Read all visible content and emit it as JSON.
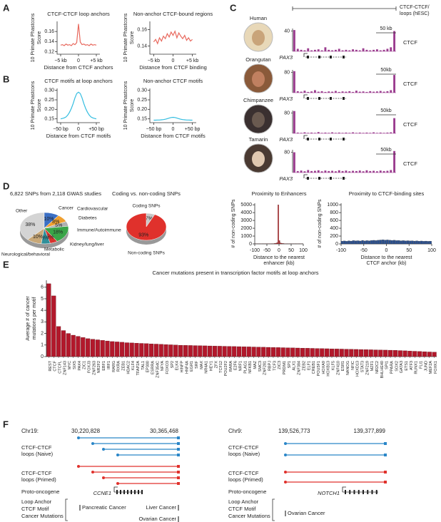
{
  "panel_labels": [
    "A",
    "B",
    "C",
    "D",
    "E",
    "F"
  ],
  "panel_a": [
    {
      "type": "line",
      "title": "CTCF-CTCF loop anchors",
      "ylabel": [
        "10 Primate Phastcons",
        "Score"
      ],
      "xlabel": "Distance from CTCF anchors",
      "color": "#e8695e",
      "x": [
        -5,
        -4.5,
        -4,
        -3.5,
        -3,
        -2.5,
        -2,
        -1.5,
        -1,
        -0.5,
        0,
        0.5,
        1,
        1.5,
        2,
        2.5,
        3,
        3.5,
        4,
        4.5,
        5
      ],
      "values": [
        0.133,
        0.134,
        0.132,
        0.135,
        0.133,
        0.134,
        0.132,
        0.136,
        0.134,
        0.138,
        0.175,
        0.139,
        0.134,
        0.135,
        0.133,
        0.134,
        0.132,
        0.135,
        0.133,
        0.134,
        0.133
      ],
      "xlim": [
        -6,
        6
      ],
      "xticks": [
        {
          "value": -5,
          "label": "−5 kb"
        },
        0,
        {
          "value": 5,
          "label": "+5 kb"
        }
      ],
      "ylim": [
        0.115,
        0.18
      ],
      "yticks": [
        0.12,
        0.14,
        0.16
      ]
    },
    {
      "type": "line",
      "title": "Non-anchor CTCF-bound regions",
      "ylabel": [
        "10 Primate Phastcons",
        "Score"
      ],
      "xlabel": "Distance from CTCF binding",
      "color": "#e8695e",
      "x": [
        -5,
        -4.5,
        -4,
        -3.5,
        -3,
        -2.5,
        -2,
        -1.5,
        -1,
        -0.5,
        0,
        0.5,
        1,
        1.5,
        2,
        2.5,
        3,
        3.5,
        4,
        4.5,
        5
      ],
      "values": [
        0.145,
        0.148,
        0.143,
        0.15,
        0.146,
        0.152,
        0.149,
        0.155,
        0.151,
        0.157,
        0.153,
        0.158,
        0.15,
        0.156,
        0.152,
        0.149,
        0.153,
        0.147,
        0.15,
        0.146,
        0.148
      ],
      "xlim": [
        -6,
        6
      ],
      "xticks": [
        {
          "value": -5,
          "label": "−5 kb"
        },
        0,
        {
          "value": 5,
          "label": "+5 kb"
        }
      ],
      "ylim": [
        0.13,
        0.17
      ],
      "yticks": [
        0.14,
        0.16
      ]
    }
  ],
  "panel_b": [
    {
      "type": "line",
      "title": "CTCF motifs at loop anchors",
      "ylabel": [
        "10 Primate Phastcons",
        "Score"
      ],
      "xlabel": "Distance from CTCF motifs",
      "color": "#33bde0",
      "x": [
        -50,
        -45,
        -40,
        -35,
        -30,
        -25,
        -20,
        -15,
        -10,
        -5,
        0,
        5,
        10,
        15,
        20,
        25,
        30,
        35,
        40,
        45,
        50
      ],
      "values": [
        0.15,
        0.152,
        0.155,
        0.16,
        0.17,
        0.185,
        0.205,
        0.23,
        0.26,
        0.283,
        0.29,
        0.283,
        0.26,
        0.23,
        0.205,
        0.185,
        0.17,
        0.16,
        0.155,
        0.152,
        0.15
      ],
      "xlim": [
        -60,
        60
      ],
      "xticks": [
        {
          "value": -50,
          "label": "−50 bp"
        },
        0,
        {
          "value": 50,
          "label": "+50 bp"
        }
      ],
      "ylim": [
        0.13,
        0.31
      ],
      "yticks": [
        0.15,
        {
          "value": 0.2,
          "label": "0.20"
        },
        0.25,
        {
          "value": 0.3,
          "label": "0.30"
        }
      ]
    },
    {
      "type": "line",
      "title": "Non-anchor CTCF motifs",
      "ylabel": [
        "10 Primate Phastcons",
        "Score"
      ],
      "xlabel": "Distance from CTCF motifs",
      "color": "#33bde0",
      "x": [
        -50,
        -45,
        -40,
        -35,
        -30,
        -25,
        -20,
        -15,
        -10,
        -5,
        0,
        5,
        10,
        15,
        20,
        25,
        30,
        35,
        40,
        45,
        50
      ],
      "values": [
        0.143,
        0.143,
        0.144,
        0.144,
        0.145,
        0.146,
        0.148,
        0.151,
        0.154,
        0.157,
        0.158,
        0.157,
        0.154,
        0.151,
        0.148,
        0.146,
        0.145,
        0.144,
        0.144,
        0.143,
        0.143
      ],
      "xlim": [
        -60,
        60
      ],
      "xticks": [
        {
          "value": -50,
          "label": "−50 bp"
        },
        0,
        {
          "value": 50,
          "label": "+50 bp"
        }
      ],
      "ylim": [
        0.13,
        0.31
      ],
      "yticks": [
        0.15,
        {
          "value": 0.2,
          "label": "0.20"
        },
        0.25,
        {
          "value": 0.3,
          "label": "0.30"
        }
      ]
    }
  ],
  "panel_c": {
    "loop_label": [
      "CTCF-CTCF/",
      "loops (hESC)"
    ],
    "track_label": "CTCF",
    "gene": "PAX3",
    "color": "#9b3d8f",
    "species": [
      {
        "name": "Human",
        "scale": "50 kb",
        "ylim": [
          0,
          45
        ],
        "yticks": [
          40
        ],
        "values": [
          42,
          5,
          3,
          2,
          6,
          2,
          3,
          4,
          2,
          8,
          3,
          2,
          3,
          5,
          2,
          3,
          2,
          4,
          3,
          2,
          6,
          3,
          2,
          3,
          4,
          2,
          3,
          5,
          8,
          40
        ]
      },
      {
        "name": "Orangutan",
        "scale": "50kb",
        "ylim": [
          0,
          90
        ],
        "yticks": [
          80
        ],
        "values": [
          85,
          6,
          4,
          8,
          3,
          5,
          10,
          4,
          6,
          3,
          5,
          4,
          7,
          3,
          5,
          4,
          6,
          3,
          8,
          4,
          5,
          3,
          6,
          4,
          5,
          7,
          4,
          6,
          10,
          70
        ]
      },
      {
        "name": "Chimpanzee",
        "scale": "50kb",
        "ylim": [
          0,
          90
        ],
        "yticks": [
          80
        ],
        "values": [
          88,
          3,
          2,
          4,
          2,
          3,
          2,
          5,
          2,
          3,
          2,
          4,
          2,
          3,
          2,
          3,
          2,
          4,
          2,
          3,
          2,
          3,
          2,
          4,
          2,
          3,
          2,
          3,
          4,
          60
        ]
      },
      {
        "name": "Tamarin",
        "scale": "50kb",
        "ylim": [
          0,
          90
        ],
        "yticks": [
          80
        ],
        "values": [
          80,
          6,
          8,
          5,
          10,
          6,
          7,
          9,
          5,
          8,
          6,
          7,
          5,
          9,
          6,
          8,
          5,
          7,
          6,
          8,
          5,
          9,
          6,
          7,
          5,
          8,
          6,
          7,
          10,
          85
        ]
      }
    ]
  },
  "panel_d": [
    {
      "type": "pie",
      "title": "6,822 SNPs from 2,118 GWAS studies",
      "categories": [
        "Other",
        "Cancer",
        "Cardiovascular",
        "Diabetes",
        "Immune/Autoimmune",
        "Kidney/lung/liver",
        "Metabolic",
        "Neurological/behavioral"
      ],
      "values": [
        38,
        10,
        8,
        5,
        18,
        5,
        6,
        10
      ],
      "value_labels": [
        "38%",
        "10%",
        "8%",
        "5%",
        "18%",
        "5%",
        "6%",
        "10%"
      ],
      "colors": [
        "#d4d4d4",
        "#3b6fc4",
        "#f0a030",
        "#b0b0b0",
        "#3aa548",
        "#d8322e",
        "#2f8f9a",
        "#c8a878"
      ]
    },
    {
      "type": "pie",
      "title": "Coding vs. non-coding SNPs",
      "categories": [
        "Coding SNPs",
        "Non-coding SNPs"
      ],
      "values": [
        7,
        93
      ],
      "value_labels": [
        "7%",
        "93%"
      ],
      "colors": [
        "#c8c8c8",
        "#e0312c"
      ]
    },
    {
      "type": "histogram",
      "title": "Proximity to Enhancers",
      "ylabel": "# of non-coding SNPs",
      "xlabel": [
        "Distance to the nearest",
        "enhancer (kb)"
      ],
      "color": "#c0282b",
      "bins": [
        -100,
        -95,
        -90,
        -85,
        -80,
        -75,
        -70,
        -65,
        -60,
        -55,
        -50,
        -45,
        -40,
        -35,
        -30,
        -25,
        -20,
        -15,
        -10,
        -5,
        0,
        5,
        10,
        15,
        20,
        25,
        30,
        35,
        40,
        45,
        50,
        55,
        60,
        65,
        70,
        75,
        80,
        85,
        90,
        95,
        100
      ],
      "values": [
        18,
        20,
        17,
        22,
        19,
        21,
        20,
        23,
        25,
        24,
        26,
        28,
        30,
        33,
        38,
        45,
        60,
        90,
        160,
        5000,
        420,
        130,
        80,
        55,
        40,
        34,
        30,
        27,
        25,
        24,
        22,
        21,
        20,
        19,
        20,
        18,
        19,
        17,
        18,
        16
      ],
      "xlim": [
        -100,
        100
      ],
      "xticks": [
        -100,
        -50,
        0,
        50,
        100
      ],
      "ylim": [
        0,
        5200
      ],
      "yticks": [
        0,
        1000,
        2000,
        3000,
        4000,
        5000
      ]
    },
    {
      "type": "histogram",
      "title": "Proximity to CTCF-binding sites",
      "ylabel": "# of non-coding SNPs",
      "xlabel": [
        "Distance to the nearest",
        "CTCF anchor (kb)"
      ],
      "color": "#2a4f8f",
      "bins": [
        -100,
        -95,
        -90,
        -85,
        -80,
        -75,
        -70,
        -65,
        -60,
        -55,
        -50,
        -45,
        -40,
        -35,
        -30,
        -25,
        -20,
        -15,
        -10,
        -5,
        0,
        5,
        10,
        15,
        20,
        25,
        30,
        35,
        40,
        45,
        50,
        55,
        60,
        65,
        70,
        75,
        80,
        85,
        90,
        95,
        100
      ],
      "values": [
        70,
        75,
        68,
        80,
        72,
        85,
        78,
        82,
        74,
        90,
        76,
        84,
        80,
        88,
        92,
        86,
        95,
        100,
        105,
        98,
        102,
        96,
        90,
        94,
        85,
        88,
        80,
        84,
        78,
        82,
        76,
        80,
        72,
        78,
        70,
        74,
        68,
        72,
        66,
        70
      ],
      "xlim": [
        -100,
        100
      ],
      "xticks": [
        -100,
        -50,
        0,
        50,
        100
      ],
      "ylim": [
        0,
        1040
      ],
      "yticks": [
        0,
        200,
        400,
        600,
        800,
        1000
      ]
    }
  ],
  "panel_e": {
    "type": "bar",
    "title": "Cancer mutations present in transcription factor motifs at loop anchors",
    "ylabel": [
      "Average # of cancer",
      "mutations per motif"
    ],
    "color": "#b2182b",
    "categories": [
      "REST",
      "CTCF",
      "CTCFL",
      "ZNF143",
      "MYC",
      "SIX5",
      "PAX4",
      "ZIC1",
      "FOXJ3",
      "ZNF263",
      "NR2F2",
      "EBF1",
      "IRF1",
      "RARG",
      "RXRA",
      "ZEB1",
      "HDAC2",
      "KLF4",
      "TFAP2A",
      "TAL1",
      "EP300",
      "ESRRA",
      "ZNF354C",
      "NFYA",
      "FOXO3",
      "SP2",
      "ELK4",
      "HINFP",
      "HNF4A",
      "EGR1",
      "SRF",
      "MAX",
      "NR4A1",
      "HEY1",
      "ZFX",
      "TCF12",
      "POU2F2",
      "RARA",
      "E2F6",
      "NRF1",
      "PLAG1",
      "NFKB1",
      "MAZ",
      "SMC3",
      "ZNF281",
      "RBPJ",
      "TCF3",
      "ZIC3",
      "PRDM1",
      "SP1",
      "ALX1",
      "ZNF384",
      "ZEB2",
      "ELF1",
      "CREB1",
      "POU5F1",
      "HOXA9",
      "HOXB13",
      "KLF5",
      "ZNF410",
      "ESR1",
      "NANOG",
      "NFIC",
      "HOXD13",
      "STAT3",
      "ZNF219",
      "MZF1",
      "NR2C2",
      "BHLHE40",
      "SPI1",
      "PPARA",
      "SOX2",
      "GATA3",
      "ETS1",
      "ATF3",
      "RUNX1",
      "FLI1",
      "JUND",
      "MEF2A",
      "FOXK1"
    ],
    "values": [
      6.3,
      5.25,
      2.6,
      2.25,
      2.0,
      1.85,
      1.75,
      1.65,
      1.55,
      1.5,
      1.45,
      1.4,
      1.35,
      1.3,
      1.27,
      1.24,
      1.2,
      1.18,
      1.16,
      1.14,
      1.12,
      1.1,
      1.08,
      1.06,
      1.04,
      1.02,
      1.0,
      0.98,
      0.97,
      0.96,
      0.95,
      0.94,
      0.93,
      0.92,
      0.91,
      0.9,
      0.89,
      0.88,
      0.87,
      0.86,
      0.85,
      0.84,
      0.83,
      0.82,
      0.81,
      0.8,
      0.79,
      0.78,
      0.77,
      0.76,
      0.75,
      0.74,
      0.73,
      0.72,
      0.71,
      0.7,
      0.69,
      0.68,
      0.67,
      0.66,
      0.65,
      0.64,
      0.63,
      0.62,
      0.61,
      0.6,
      0.59,
      0.58,
      0.57,
      0.56,
      0.55,
      0.54,
      0.52,
      0.5,
      0.48,
      0.46,
      0.44,
      0.42,
      0.4,
      0.38
    ],
    "ylim": [
      0,
      6.6
    ],
    "yticks": [
      0,
      1,
      2,
      3,
      4,
      5,
      6
    ]
  },
  "panel_f": [
    {
      "chr": "Chr19:",
      "coords": [
        "30,220,828",
        "30,365,468"
      ],
      "naive": [
        "CTCF-CTCF",
        "loops (Naive)"
      ],
      "primed": [
        "CTCF-CTCF",
        "loops (Primed)"
      ],
      "proto": "Proto-oncogene",
      "gene": "CCNE1",
      "legend": [
        "Loop Anchor",
        "CTCF Motif",
        "Cancer Mutations"
      ],
      "mutations": [
        "Pancreatic Cancer",
        "Liver Cancer",
        "Ovarian Cancer"
      ]
    },
    {
      "chr": "Chr9:",
      "coords": [
        "139,526,773",
        "139,377,899"
      ],
      "naive": [
        "CTCF-CTCF",
        "loops (Naive)"
      ],
      "primed": [
        "CTCF-CTCF",
        "loops (Primed)"
      ],
      "proto": "Proto-oncogene",
      "gene": "NOTCH1",
      "legend": [
        "Loop Anchor",
        "CTCF Motif",
        "Cancer Mutations"
      ],
      "mutations": [
        "Ovarian Cancer"
      ]
    }
  ]
}
